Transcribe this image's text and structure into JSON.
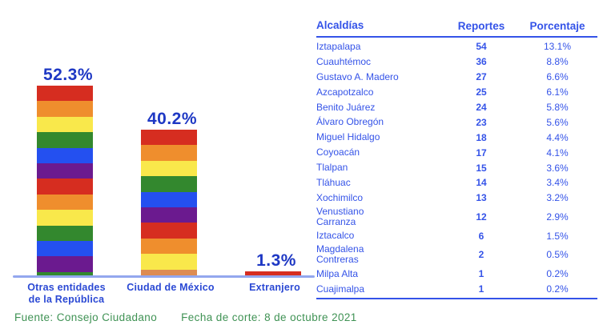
{
  "chart_data": {
    "type": "bar",
    "title": "",
    "xlabel": "",
    "ylabel": "",
    "categories": [
      "Otras entidades\nde la República",
      "Ciudad de México",
      "Extranjero"
    ],
    "values": [
      52.3,
      40.2,
      1.3
    ],
    "value_labels": [
      "52.3%",
      "40.2%",
      "1.3%"
    ],
    "legend": "none",
    "grid": "off",
    "ylim": [
      0,
      60
    ],
    "bar_style": "rainbow-striped",
    "stripes": [
      [
        "red",
        "orange",
        "yellow",
        "green",
        "blue",
        "purple",
        "red",
        "orange",
        "yellow",
        "green",
        "blue",
        "purple",
        "green"
      ],
      [
        "red",
        "orange",
        "yellow",
        "green",
        "blue",
        "purple",
        "red",
        "orange",
        "yellow",
        "tan"
      ],
      [
        "red"
      ]
    ],
    "palette": {
      "red": "#d62d20",
      "orange": "#ef8e2d",
      "yellow": "#f9e84b",
      "green": "#33882e",
      "blue": "#2450f0",
      "purple": "#6b1a8f",
      "tan": "#dd8c52"
    },
    "colors": {
      "value_label": "#1e38c4",
      "category_label": "#2b49d4",
      "axis_line": "#93a7ee"
    }
  },
  "table": {
    "headers": [
      "Alcaldías",
      "Reportes",
      "Porcentaje"
    ],
    "accent_color": "#3453e8",
    "rows": [
      {
        "name": "Iztapalapa",
        "reportes": "54",
        "porcentaje": "13.1%"
      },
      {
        "name": "Cuauhtémoc",
        "reportes": "36",
        "porcentaje": "8.8%"
      },
      {
        "name": "Gustavo A. Madero",
        "reportes": "27",
        "porcentaje": "6.6%"
      },
      {
        "name": "Azcapotzalco",
        "reportes": "25",
        "porcentaje": "6.1%"
      },
      {
        "name": "Benito Juárez",
        "reportes": "24",
        "porcentaje": "5.8%"
      },
      {
        "name": "Álvaro Obregón",
        "reportes": "23",
        "porcentaje": "5.6%"
      },
      {
        "name": "Miguel Hidalgo",
        "reportes": "18",
        "porcentaje": "4.4%"
      },
      {
        "name": "Coyoacán",
        "reportes": "17",
        "porcentaje": "4.1%"
      },
      {
        "name": "Tlalpan",
        "reportes": "15",
        "porcentaje": "3.6%"
      },
      {
        "name": "Tláhuac",
        "reportes": "14",
        "porcentaje": "3.4%"
      },
      {
        "name": "Xochimilco",
        "reportes": "13",
        "porcentaje": "3.2%"
      },
      {
        "name": "Venustiano\nCarranza",
        "reportes": "12",
        "porcentaje": "2.9%"
      },
      {
        "name": "Iztacalco",
        "reportes": "6",
        "porcentaje": "1.5%"
      },
      {
        "name": "Magdalena\nContreras",
        "reportes": "2",
        "porcentaje": "0.5%"
      },
      {
        "name": "Milpa Alta",
        "reportes": "1",
        "porcentaje": "0.2%"
      },
      {
        "name": "Cuajimalpa",
        "reportes": "1",
        "porcentaje": "0.2%"
      }
    ]
  },
  "footer": {
    "source": "Fuente: Consejo Ciudadano",
    "cutoff_date": "Fecha de corte: 8 de octubre 2021",
    "color": "#3f9254"
  }
}
